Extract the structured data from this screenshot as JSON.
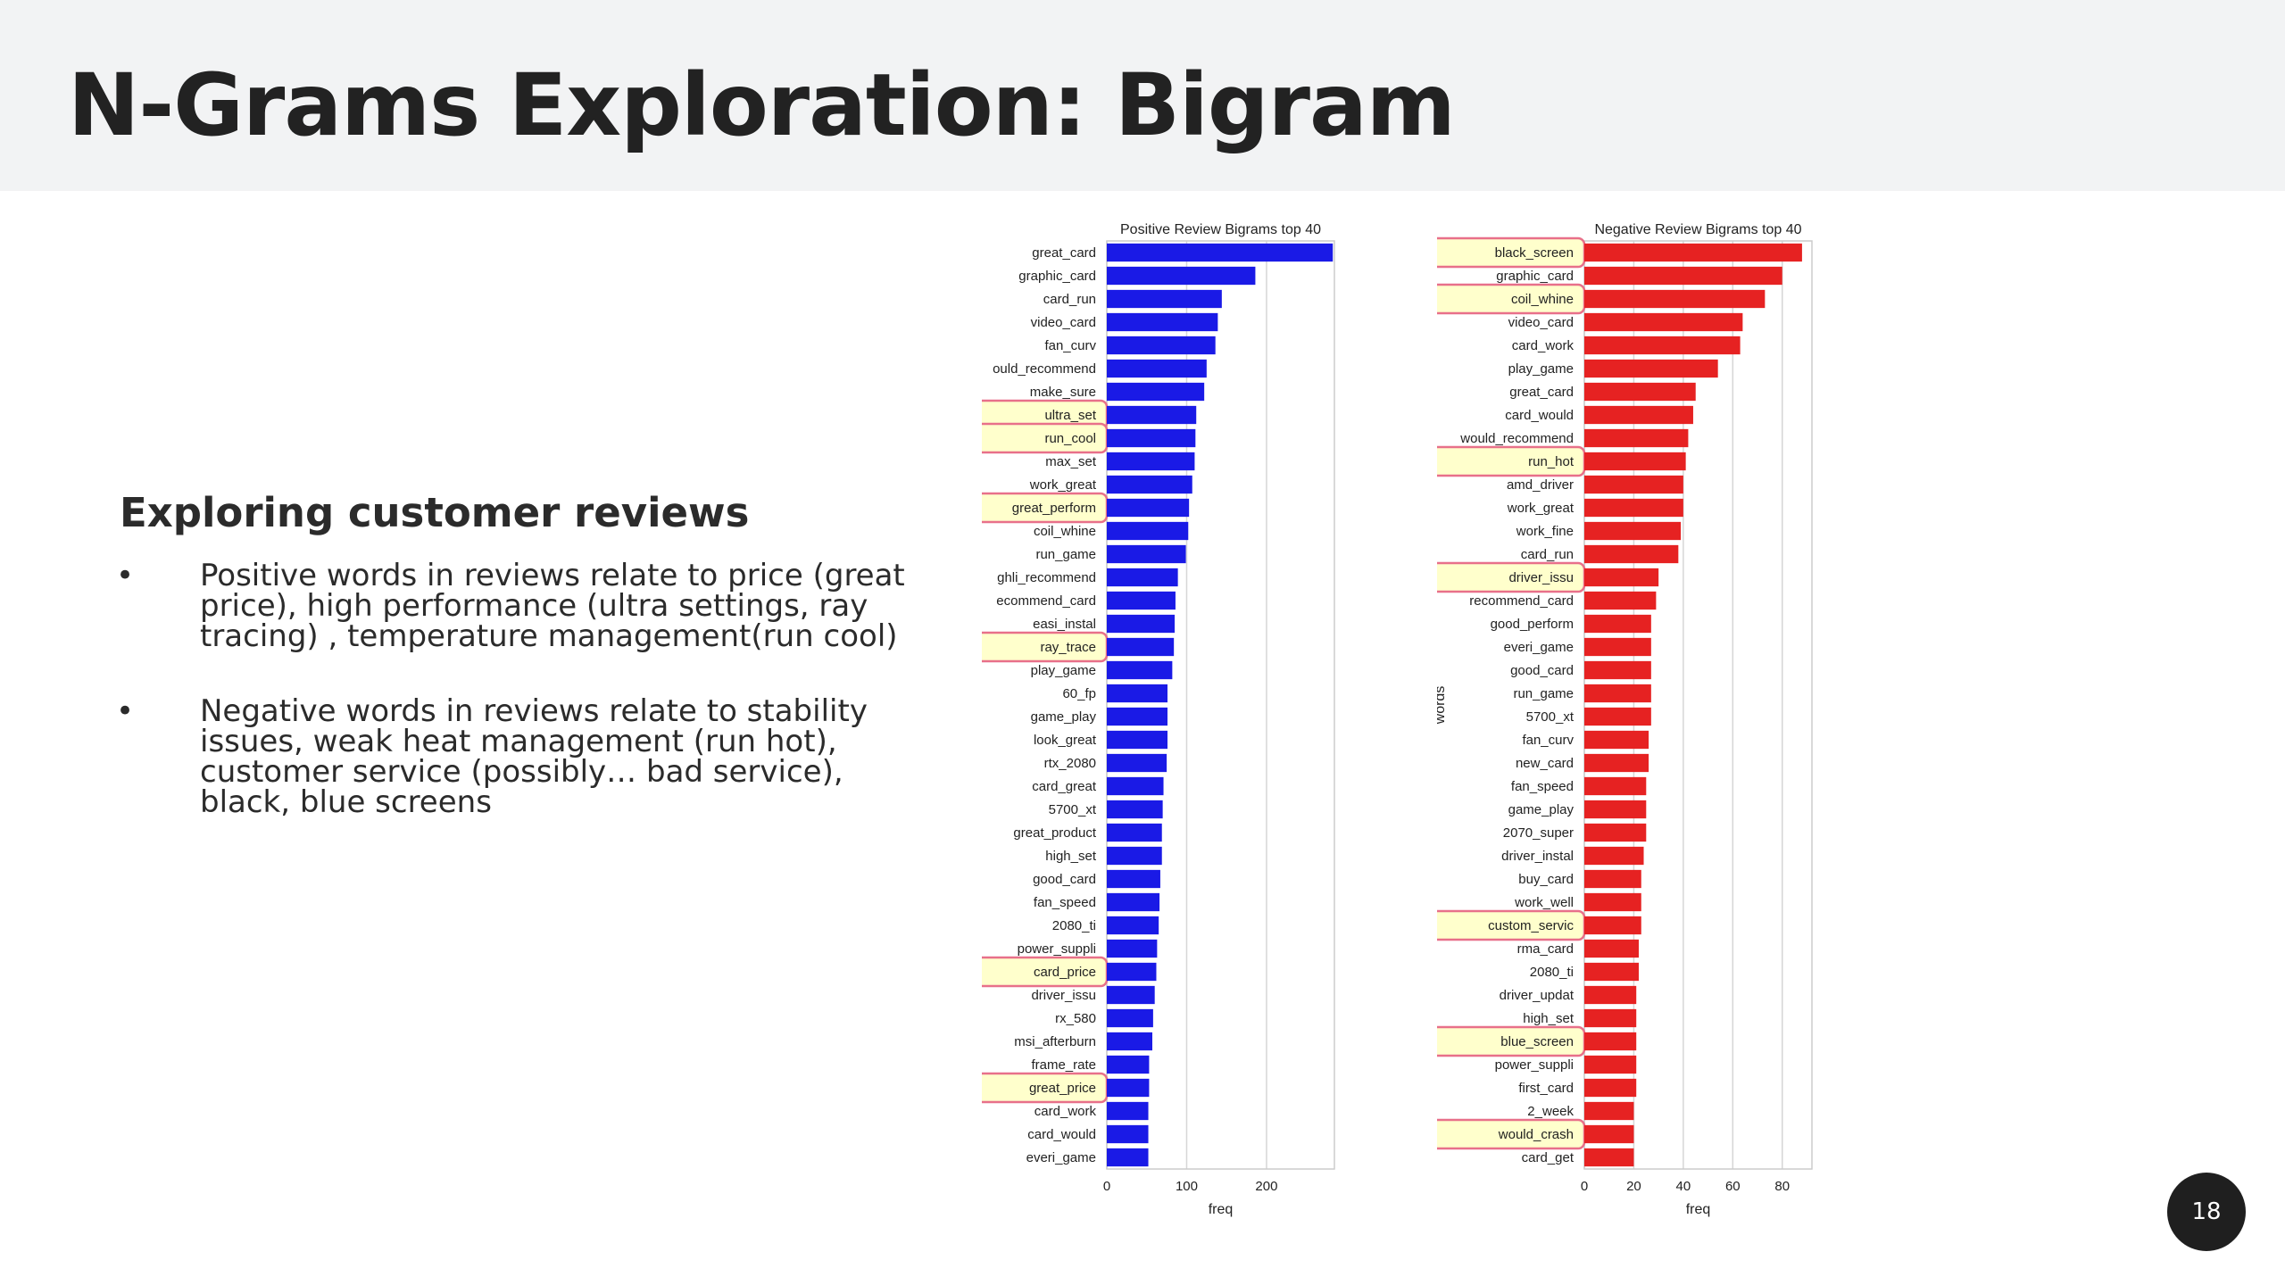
{
  "slide": {
    "title": "N-Grams Exploration: Bigram",
    "section_heading": "Exploring customer reviews",
    "bullets": [
      "Positive words in reviews relate to price (great price), high performance (ultra settings, ray tracing) , temperature management(run cool)",
      "Negative words in reviews relate to stability issues, weak heat management (run hot), customer service (possibly… bad service), black, blue screens"
    ],
    "bullet_symbol": "•",
    "page_number": "18"
  },
  "colors": {
    "positive_bar": "#1a1ae6",
    "negative_bar": "#e62222",
    "highlight_fill": "#ffffcc",
    "highlight_border": "#e8708a"
  },
  "chart_data": [
    {
      "type": "bar",
      "orientation": "horizontal",
      "title": "Positive Review Bigrams top 40",
      "xlabel": "freq",
      "ylabel": "",
      "xlim": [
        0,
        285
      ],
      "xticks": [
        0,
        100,
        200
      ],
      "grid": true,
      "categories": [
        "great_card",
        "graphic_card",
        "card_run",
        "video_card",
        "fan_curv",
        "ould_recommend",
        "make_sure",
        "ultra_set",
        "run_cool",
        "max_set",
        "work_great",
        "great_perform",
        "coil_whine",
        "run_game",
        "ghli_recommend",
        "ecommend_card",
        "easi_instal",
        "ray_trace",
        "play_game",
        "60_fp",
        "game_play",
        "look_great",
        "rtx_2080",
        "card_great",
        "5700_xt",
        "great_product",
        "high_set",
        "good_card",
        "fan_speed",
        "2080_ti",
        "power_suppli",
        "card_price",
        "driver_issu",
        "rx_580",
        "msi_afterburn",
        "frame_rate",
        "great_price",
        "card_work",
        "card_would",
        "everi_game"
      ],
      "values": [
        283,
        186,
        144,
        139,
        136,
        125,
        122,
        112,
        111,
        110,
        107,
        103,
        102,
        99,
        89,
        86,
        85,
        84,
        82,
        76,
        76,
        76,
        75,
        71,
        70,
        69,
        69,
        67,
        66,
        65,
        63,
        62,
        60,
        58,
        57,
        53,
        53,
        52,
        52,
        52
      ],
      "highlighted": [
        "ultra_set",
        "run_cool",
        "great_perform",
        "ray_trace",
        "card_price",
        "great_price"
      ]
    },
    {
      "type": "bar",
      "orientation": "horizontal",
      "title": "Negative Review Bigrams top 40",
      "xlabel": "freq",
      "ylabel": "words",
      "xlim": [
        0,
        92
      ],
      "xticks": [
        0,
        20,
        40,
        60,
        80
      ],
      "grid": true,
      "categories": [
        "black_screen",
        "graphic_card",
        "coil_whine",
        "video_card",
        "card_work",
        "play_game",
        "great_card",
        "card_would",
        "would_recommend",
        "run_hot",
        "amd_driver",
        "work_great",
        "work_fine",
        "card_run",
        "driver_issu",
        "recommend_card",
        "good_perform",
        "everi_game",
        "good_card",
        "run_game",
        "5700_xt",
        "fan_curv",
        "new_card",
        "fan_speed",
        "game_play",
        "2070_super",
        "driver_instal",
        "buy_card",
        "work_well",
        "custom_servic",
        "rma_card",
        "2080_ti",
        "driver_updat",
        "high_set",
        "blue_screen",
        "power_suppli",
        "first_card",
        "2_week",
        "would_crash",
        "card_get"
      ],
      "values": [
        88,
        80,
        73,
        64,
        63,
        54,
        45,
        44,
        42,
        41,
        40,
        40,
        39,
        38,
        30,
        29,
        27,
        27,
        27,
        27,
        27,
        26,
        26,
        25,
        25,
        25,
        24,
        23,
        23,
        23,
        22,
        22,
        21,
        21,
        21,
        21,
        21,
        20,
        20,
        20
      ],
      "highlighted": [
        "black_screen",
        "coil_whine",
        "run_hot",
        "driver_issu",
        "custom_servic",
        "blue_screen",
        "would_crash"
      ]
    }
  ]
}
